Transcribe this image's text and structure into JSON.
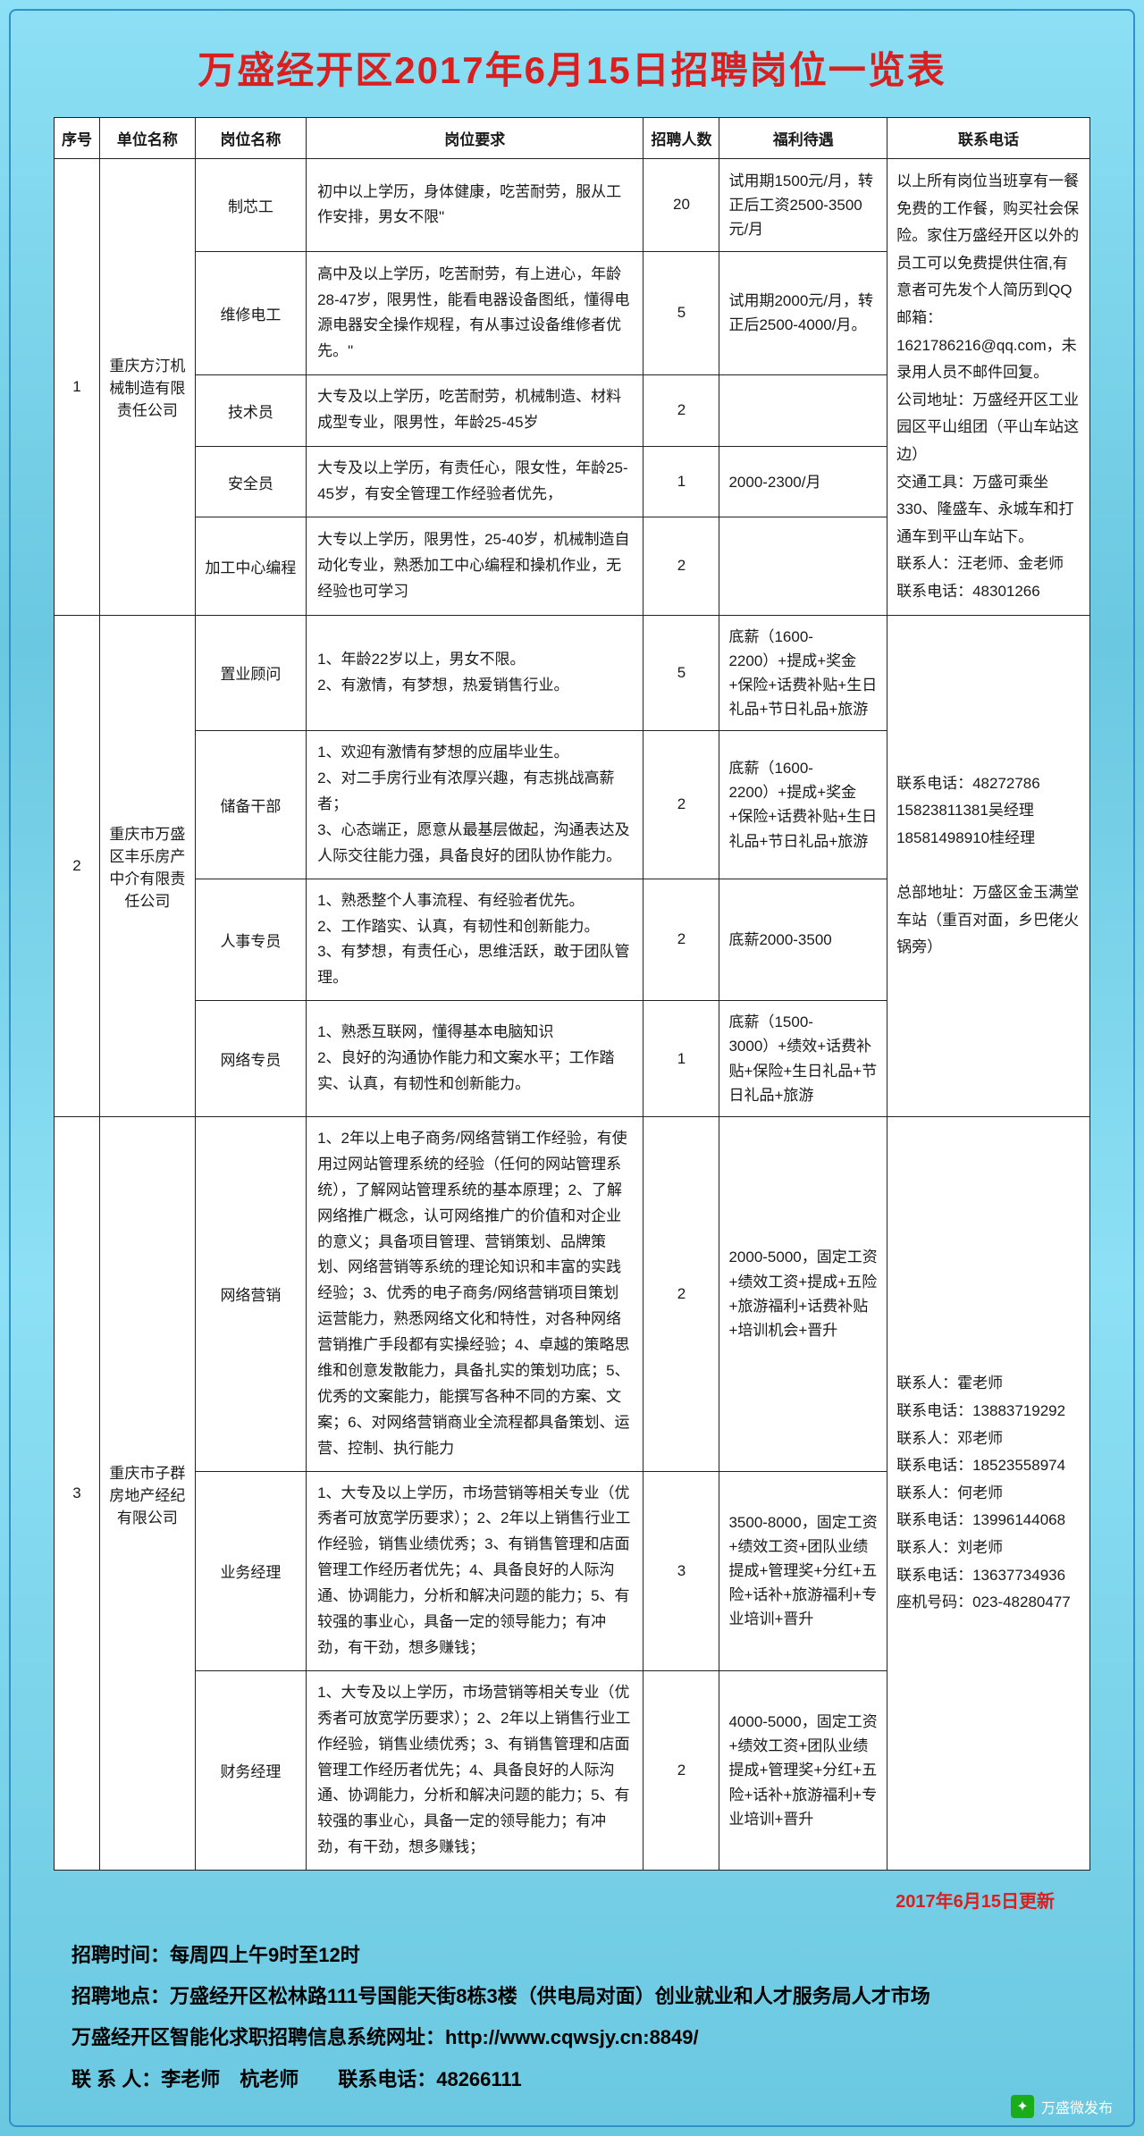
{
  "title": "万盛经开区2017年6月15日招聘岗位一览表",
  "headers": {
    "seq": "序号",
    "company": "单位名称",
    "position": "岗位名称",
    "requirements": "岗位要求",
    "count": "招聘人数",
    "benefits": "福利待遇",
    "contact": "联系电话"
  },
  "companies": [
    {
      "seq": "1",
      "name": "重庆方汀机械制造有限责任公司",
      "contact": "以上所有岗位当班享有一餐免费的工作餐，购买社会保险。家住万盛经开区以外的员工可以免费提供住宿,有意者可先发个人简历到QQ邮箱：1621786216@qq.com，未录用人员不邮件回复。\n公司地址：万盛经开区工业园区平山组团（平山车站这边）\n交通工具：万盛可乘坐330、隆盛车、永城车和打通车到平山车站下。\n联系人：汪老师、金老师　　联系电话：48301266",
      "positions": [
        {
          "name": "制芯工",
          "req": "初中以上学历，身体健康，吃苦耐劳，服从工作安排，男女不限\"",
          "count": "20",
          "benefit": "试用期1500元/月，转正后工资2500-3500元/月"
        },
        {
          "name": "维修电工",
          "req": "高中及以上学历，吃苦耐劳，有上进心，年龄28-47岁，限男性，能看电器设备图纸，懂得电源电器安全操作规程，有从事过设备维修者优先。\"",
          "count": "5",
          "benefit": "试用期2000元/月，转正后2500-4000/月。"
        },
        {
          "name": "技术员",
          "req": "大专及以上学历，吃苦耐劳，机械制造、材料成型专业，限男性，年龄25-45岁",
          "count": "2",
          "benefit": ""
        },
        {
          "name": "安全员",
          "req": "大专及以上学历，有责任心，限女性，年龄25-45岁，有安全管理工作经验者优先，",
          "count": "1",
          "benefit": "2000-2300/月"
        },
        {
          "name": "加工中心编程",
          "req": "大专以上学历，限男性，25-40岁，机械制造自动化专业，熟悉加工中心编程和操机作业，无经验也可学习",
          "count": "2",
          "benefit": ""
        }
      ]
    },
    {
      "seq": "2",
      "name": "重庆市万盛区丰乐房产中介有限责任公司",
      "contact": "联系电话：48272786\n15823811381吴经理\n18581498910桂经理\n\n总部地址：万盛区金玉满堂车站（重百对面，乡巴佬火锅旁）",
      "positions": [
        {
          "name": "置业顾问",
          "req": "1、年龄22岁以上，男女不限。\n2、有激情，有梦想，热爱销售行业。",
          "count": "5",
          "benefit": "底薪（1600-2200）+提成+奖金+保险+话费补贴+生日礼品+节日礼品+旅游"
        },
        {
          "name": "储备干部",
          "req": "1、欢迎有激情有梦想的应届毕业生。\n2、对二手房行业有浓厚兴趣，有志挑战高薪者；\n3、心态端正，愿意从最基层做起，沟通表达及人际交往能力强，具备良好的团队协作能力。",
          "count": "2",
          "benefit": "底薪（1600-2200）+提成+奖金+保险+话费补贴+生日礼品+节日礼品+旅游"
        },
        {
          "name": "人事专员",
          "req": "1、熟悉整个人事流程、有经验者优先。\n2、工作踏实、认真，有韧性和创新能力。\n3、有梦想，有责任心，思维活跃，敢于团队管理。",
          "count": "2",
          "benefit": "底薪2000-3500"
        },
        {
          "name": "网络专员",
          "req": "1、熟悉互联网，懂得基本电脑知识\n2、良好的沟通协作能力和文案水平；工作踏实、认真，有韧性和创新能力。",
          "count": "1",
          "benefit": "底薪（1500-3000）+绩效+话费补贴+保险+生日礼品+节日礼品+旅游"
        }
      ]
    },
    {
      "seq": "3",
      "name": "重庆市子群房地产经纪有限公司",
      "contact": "联系人：霍老师\n联系电话：13883719292\n联系人：邓老师\n联系电话：18523558974\n联系人：何老师\n联系电话：13996144068\n联系人：刘老师\n联系电话：13637734936\n座机号码：023-48280477",
      "positions": [
        {
          "name": "网络营销",
          "req": "1、2年以上电子商务/网络营销工作经验，有使用过网站管理系统的经验（任何的网站管理系统），了解网站管理系统的基本原理；2、了解网络推广概念，认可网络推广的价值和对企业的意义；具备项目管理、营销策划、品牌策划、网络营销等系统的理论知识和丰富的实践经验；3、优秀的电子商务/网络营销项目策划运营能力，熟悉网络文化和特性，对各种网络营销推广手段都有实操经验；4、卓越的策略思维和创意发散能力，具备扎实的策划功底；5、优秀的文案能力，能撰写各种不同的方案、文案；6、对网络营销商业全流程都具备策划、运营、控制、执行能力",
          "count": "2",
          "benefit": "2000-5000，固定工资+绩效工资+提成+五险+旅游福利+话费补贴+培训机会+晋升"
        },
        {
          "name": "业务经理",
          "req": "1、大专及以上学历，市场营销等相关专业（优秀者可放宽学历要求）；2、2年以上销售行业工作经验，销售业绩优秀；3、有销售管理和店面管理工作经历者优先；4、具备良好的人际沟通、协调能力，分析和解决问题的能力；5、有较强的事业心，具备一定的领导能力；有冲劲，有干劲，想多赚钱；",
          "count": "3",
          "benefit": "3500-8000，固定工资+绩效工资+团队业绩提成+管理奖+分红+五险+话补+旅游福利+专业培训+晋升"
        },
        {
          "name": "财务经理",
          "req": "1、大专及以上学历，市场营销等相关专业（优秀者可放宽学历要求）；2、2年以上销售行业工作经验，销售业绩优秀；3、有销售管理和店面管理工作经历者优先；4、具备良好的人际沟通、协调能力，分析和解决问题的能力；5、有较强的事业心，具备一定的领导能力；有冲劲，有干劲，想多赚钱；",
          "count": "2",
          "benefit": "4000-5000，固定工资+绩效工资+团队业绩提成+管理奖+分红+五险+话补+旅游福利+专业培训+晋升"
        }
      ]
    }
  ],
  "update_note": "2017年6月15日更新",
  "footer": {
    "l1": "招聘时间：每周四上午9时至12时",
    "l2": "招聘地点：万盛经开区松林路111号国能天街8栋3楼（供电局对面）创业就业和人才服务局人才市场",
    "l3": "万盛经开区智能化求职招聘信息系统网址：http://www.cqwsjy.cn:8849/",
    "l4": "联 系 人：李老师　杭老师　　联系电话：48266111"
  },
  "wechat": "万盛微发布"
}
